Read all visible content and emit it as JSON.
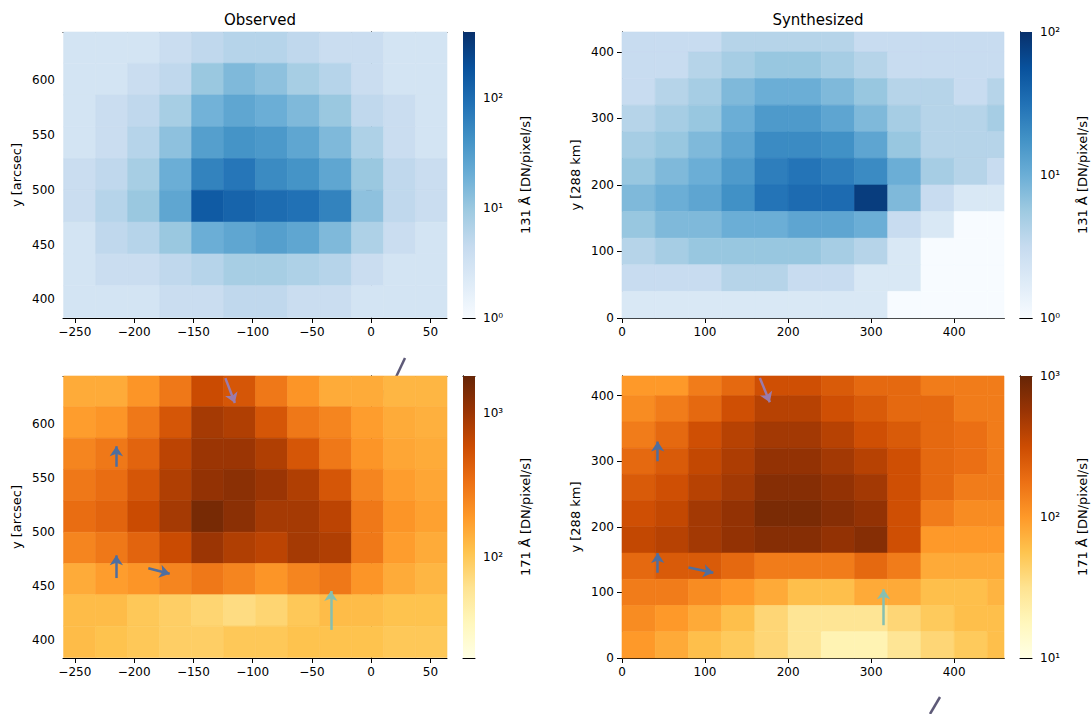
{
  "chart_data": [
    {
      "type": "heatmap",
      "title": "Observed",
      "ylabel": "y [arcsec]",
      "log": true,
      "xlim": [
        -260,
        64
      ],
      "ylim": [
        383,
        644
      ],
      "xticks": [
        {
          "value": -250,
          "label": "−250"
        },
        {
          "value": -200,
          "label": "−200"
        },
        {
          "value": -150,
          "label": "−150"
        },
        {
          "value": -100,
          "label": "−100"
        },
        {
          "value": -50,
          "label": "−50"
        },
        0,
        50
      ],
      "yticks": [
        400,
        450,
        500,
        550,
        600
      ],
      "cells": {
        "x": [
          -246,
          -219,
          -192,
          -165,
          -138,
          -111,
          -84,
          -57,
          -30,
          -3,
          24,
          51
        ],
        "y": [
          630,
          601,
          572,
          543,
          514,
          485,
          456,
          427,
          398
        ],
        "values": [
          [
            3,
            3,
            3,
            4,
            5,
            6,
            6,
            5,
            4,
            4,
            3,
            3
          ],
          [
            3,
            3,
            4,
            5,
            10,
            15,
            12,
            8,
            6,
            4,
            3,
            3
          ],
          [
            3,
            4,
            5,
            8,
            18,
            25,
            20,
            15,
            10,
            5,
            4,
            3
          ],
          [
            3,
            4,
            6,
            12,
            30,
            40,
            35,
            25,
            15,
            7,
            4,
            3
          ],
          [
            4,
            5,
            8,
            20,
            60,
            80,
            50,
            40,
            25,
            10,
            5,
            4
          ],
          [
            4,
            6,
            10,
            25,
            150,
            120,
            100,
            90,
            60,
            12,
            5,
            4
          ],
          [
            3,
            5,
            6,
            10,
            20,
            25,
            30,
            25,
            15,
            7,
            4,
            3
          ],
          [
            3,
            4,
            4,
            5,
            6,
            8,
            8,
            7,
            6,
            4,
            3,
            3
          ],
          [
            3,
            3,
            3,
            4,
            4,
            5,
            5,
            4,
            4,
            3,
            3,
            3
          ]
        ]
      },
      "colorbar": {
        "label": "131 Å [DN/pixel/s]",
        "range": [
          1,
          400
        ],
        "ticks": [
          {
            "value": 1,
            "label": "10⁰"
          },
          {
            "value": 10,
            "label": "10¹"
          },
          {
            "value": 100,
            "label": "10²"
          }
        ],
        "colors": [
          "#f7fbff",
          "#deebf7",
          "#c6dbef",
          "#9ecae1",
          "#6baed6",
          "#4292c6",
          "#2171b5",
          "#08519c",
          "#08306b"
        ]
      },
      "arrows": []
    },
    {
      "type": "heatmap",
      "title": "Synthesized",
      "ylabel": "y [288 km]",
      "log": true,
      "xlim": [
        0,
        460
      ],
      "ylim": [
        0,
        430
      ],
      "xticks": [
        0,
        100,
        200,
        300,
        400
      ],
      "yticks": [
        0,
        100,
        200,
        300,
        400
      ],
      "cells": {
        "x": [
          20,
          60,
          100,
          140,
          180,
          220,
          260,
          300,
          340,
          380,
          420,
          460
        ],
        "y": [
          420,
          380,
          340,
          300,
          260,
          220,
          180,
          140,
          100,
          60,
          20
        ],
        "values": [
          [
            3,
            3,
            3,
            4,
            4,
            4,
            4,
            3,
            3,
            3,
            3,
            3
          ],
          [
            3,
            3,
            4,
            5,
            6,
            6,
            5,
            4,
            3,
            3,
            3,
            3
          ],
          [
            3,
            4,
            5,
            8,
            10,
            10,
            8,
            6,
            4,
            4,
            3,
            4
          ],
          [
            4,
            5,
            6,
            10,
            15,
            15,
            12,
            8,
            5,
            4,
            4,
            5
          ],
          [
            5,
            6,
            8,
            12,
            20,
            20,
            18,
            12,
            6,
            4,
            4,
            4
          ],
          [
            6,
            8,
            10,
            15,
            25,
            30,
            25,
            20,
            10,
            5,
            4,
            3
          ],
          [
            8,
            10,
            12,
            18,
            30,
            35,
            35,
            80,
            8,
            3,
            2,
            2
          ],
          [
            6,
            8,
            8,
            10,
            10,
            12,
            12,
            10,
            3,
            2,
            1,
            1
          ],
          [
            4,
            5,
            6,
            6,
            6,
            6,
            5,
            4,
            2,
            1,
            1,
            1
          ],
          [
            3,
            3,
            3,
            4,
            4,
            3,
            3,
            2,
            2,
            1,
            1,
            1
          ],
          [
            2,
            2,
            2,
            2,
            2,
            2,
            2,
            2,
            1,
            1,
            1,
            1
          ]
        ]
      },
      "colorbar": {
        "label": "131 Å [DN/pixel/s]",
        "range": [
          1,
          100
        ],
        "ticks": [
          {
            "value": 1,
            "label": "10⁰"
          },
          {
            "value": 10,
            "label": "10¹"
          },
          {
            "value": 100,
            "label": "10²"
          }
        ],
        "colors": [
          "#f7fbff",
          "#deebf7",
          "#c6dbef",
          "#9ecae1",
          "#6baed6",
          "#4292c6",
          "#2171b5",
          "#08519c",
          "#08306b"
        ]
      },
      "arrows": []
    },
    {
      "type": "heatmap",
      "ylabel": "y [arcsec]",
      "log": true,
      "xlim": [
        -260,
        64
      ],
      "ylim": [
        383,
        644
      ],
      "xticks": [
        {
          "value": -250,
          "label": "−250"
        },
        {
          "value": -200,
          "label": "−200"
        },
        {
          "value": -150,
          "label": "−150"
        },
        {
          "value": -100,
          "label": "−100"
        },
        {
          "value": -50,
          "label": "−50"
        },
        0,
        50
      ],
      "yticks": [
        400,
        450,
        500,
        550,
        600
      ],
      "cells": {
        "x": [
          -246,
          -219,
          -192,
          -165,
          -138,
          -111,
          -84,
          -57,
          -30,
          -3,
          24,
          51
        ],
        "y": [
          630,
          601,
          572,
          543,
          514,
          485,
          456,
          427,
          398
        ],
        "values": [
          [
            150,
            150,
            200,
            300,
            600,
            500,
            300,
            200,
            150,
            150,
            130,
            130
          ],
          [
            180,
            200,
            300,
            500,
            900,
            800,
            500,
            300,
            250,
            180,
            150,
            140
          ],
          [
            250,
            300,
            400,
            700,
            1000,
            1000,
            800,
            500,
            300,
            200,
            160,
            150
          ],
          [
            300,
            350,
            500,
            800,
            1100,
            1200,
            1000,
            800,
            500,
            250,
            180,
            160
          ],
          [
            350,
            400,
            600,
            900,
            1500,
            1200,
            900,
            900,
            700,
            300,
            200,
            170
          ],
          [
            250,
            300,
            400,
            600,
            1000,
            800,
            700,
            900,
            800,
            300,
            180,
            150
          ],
          [
            150,
            180,
            200,
            250,
            300,
            250,
            200,
            250,
            300,
            200,
            150,
            130
          ],
          [
            120,
            120,
            100,
            90,
            80,
            70,
            80,
            100,
            120,
            120,
            110,
            110
          ],
          [
            120,
            110,
            100,
            90,
            90,
            100,
            100,
            110,
            110,
            110,
            100,
            100
          ]
        ]
      },
      "colorbar": {
        "label": "171 Å [DN/pixel/s]",
        "range": [
          20,
          1800
        ],
        "ticks": [
          {
            "value": 100,
            "label": "10²"
          },
          {
            "value": 1000,
            "label": "10³"
          }
        ],
        "colors": [
          "#ffffe5",
          "#fff7bc",
          "#fee391",
          "#fec44f",
          "#fe9929",
          "#ec7014",
          "#cc4c02",
          "#993404",
          "#662506"
        ]
      },
      "arrows": [
        {
          "from": [
            -123,
            642
          ],
          "to": [
            -115,
            619
          ],
          "color": "#9b7bab"
        },
        {
          "from": [
            -215,
            560
          ],
          "to": [
            -215,
            579
          ],
          "color": "#4f6e9f"
        },
        {
          "from": [
            -215,
            457
          ],
          "to": [
            -215,
            478
          ],
          "color": "#4f6e9f"
        },
        {
          "from": [
            -188,
            466
          ],
          "to": [
            -170,
            461
          ],
          "color": "#4f6e9f"
        },
        {
          "from": [
            -34,
            409
          ],
          "to": [
            -34,
            445
          ],
          "color": "#86bfb0"
        }
      ]
    },
    {
      "type": "heatmap",
      "ylabel": "y [288 km]",
      "log": true,
      "xlim": [
        0,
        460
      ],
      "ylim": [
        0,
        430
      ],
      "xticks": [
        0,
        100,
        200,
        300,
        400
      ],
      "yticks": [
        0,
        100,
        200,
        300,
        400
      ],
      "cells": {
        "x": [
          20,
          60,
          100,
          140,
          180,
          220,
          260,
          300,
          340,
          380,
          420,
          460
        ],
        "y": [
          420,
          380,
          340,
          300,
          260,
          220,
          180,
          140,
          100,
          60,
          20
        ],
        "values": [
          [
            100,
            100,
            150,
            200,
            300,
            300,
            250,
            200,
            200,
            150,
            150,
            150
          ],
          [
            120,
            150,
            200,
            300,
            400,
            400,
            300,
            250,
            200,
            200,
            150,
            150
          ],
          [
            150,
            200,
            300,
            400,
            500,
            500,
            400,
            300,
            250,
            200,
            180,
            150
          ],
          [
            200,
            250,
            350,
            450,
            600,
            600,
            500,
            400,
            300,
            200,
            180,
            150
          ],
          [
            250,
            300,
            400,
            500,
            700,
            700,
            600,
            500,
            300,
            200,
            150,
            150
          ],
          [
            300,
            350,
            500,
            600,
            800,
            800,
            700,
            600,
            300,
            150,
            120,
            120
          ],
          [
            350,
            400,
            500,
            600,
            700,
            700,
            600,
            700,
            300,
            100,
            100,
            100
          ],
          [
            200,
            250,
            250,
            200,
            150,
            150,
            150,
            200,
            150,
            80,
            80,
            80
          ],
          [
            150,
            150,
            120,
            100,
            80,
            60,
            60,
            80,
            80,
            60,
            60,
            70
          ],
          [
            120,
            100,
            80,
            60,
            40,
            30,
            30,
            30,
            40,
            50,
            60,
            60
          ],
          [
            100,
            80,
            60,
            50,
            40,
            30,
            20,
            20,
            30,
            40,
            50,
            60
          ]
        ]
      },
      "colorbar": {
        "label": "171 Å [DN/pixel/s]",
        "range": [
          10,
          1000
        ],
        "ticks": [
          {
            "value": 10,
            "label": "10¹"
          },
          {
            "value": 100,
            "label": "10²"
          },
          {
            "value": 1000,
            "label": "10³"
          }
        ],
        "colors": [
          "#ffffe5",
          "#fff7bc",
          "#fee391",
          "#fec44f",
          "#fe9929",
          "#ec7014",
          "#cc4c02",
          "#993404",
          "#662506"
        ]
      },
      "arrows": [
        {
          "from": [
            166,
            427
          ],
          "to": [
            178,
            390
          ],
          "color": "#9b7bab"
        },
        {
          "from": [
            43,
            300
          ],
          "to": [
            43,
            330
          ],
          "color": "#4f6e9f"
        },
        {
          "from": [
            43,
            130
          ],
          "to": [
            43,
            160
          ],
          "color": "#4f6e9f"
        },
        {
          "from": [
            80,
            138
          ],
          "to": [
            110,
            130
          ],
          "color": "#4f6e9f"
        },
        {
          "from": [
            315,
            50
          ],
          "to": [
            315,
            105
          ],
          "color": "#86bfb0"
        }
      ]
    }
  ]
}
